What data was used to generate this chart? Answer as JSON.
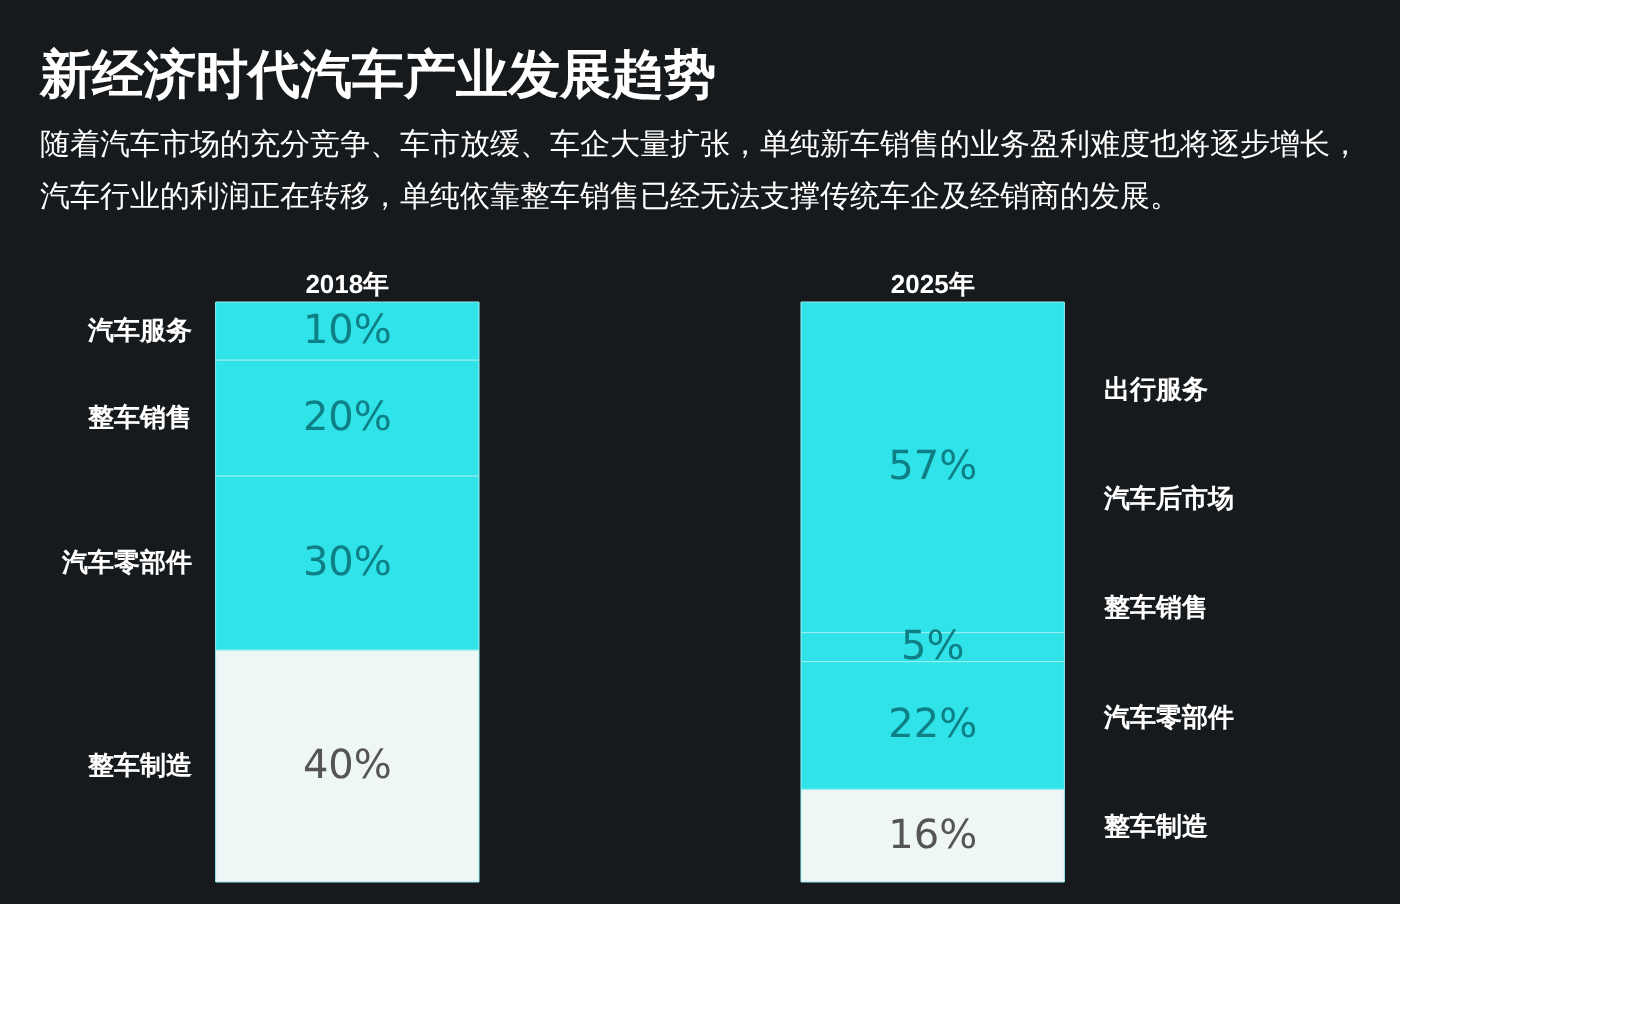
{
  "chart_data": {
    "type": "bar",
    "stacked": true,
    "title": "新经济时代汽车产业发展趋势",
    "subtitle": "随着汽车市场的充分竞争、车市放缓、车企大量扩张，单纯新车销售的业务盈利难度也将逐步增长，汽车行业的利润正在转移，单纯依靠整车销售已经无法支撑传统车企及经销商的发展。",
    "categories": [
      "2018年",
      "2025年"
    ],
    "series": [
      {
        "name": "整车制造",
        "color": "#eef6f6",
        "values": [
          40,
          16
        ],
        "value_labels": [
          "40%",
          "16%"
        ]
      },
      {
        "name": "汽车零部件",
        "color": "#2fe3e8",
        "values": [
          30,
          22
        ],
        "value_labels": [
          "30%",
          "22%"
        ]
      },
      {
        "name": "整车销售",
        "color": "#2fe3e8",
        "values": [
          20,
          5
        ],
        "value_labels": [
          "20%",
          "5%"
        ]
      },
      {
        "name": "汽车服务",
        "color": "#2fe3e8",
        "values": [
          10,
          57
        ],
        "value_labels": [
          "10%",
          "57%"
        ]
      }
    ],
    "annotations": [
      "整车制造",
      "汽车零部件",
      "整车销售",
      "汽车后市场",
      "出行服务"
    ]
  }
}
